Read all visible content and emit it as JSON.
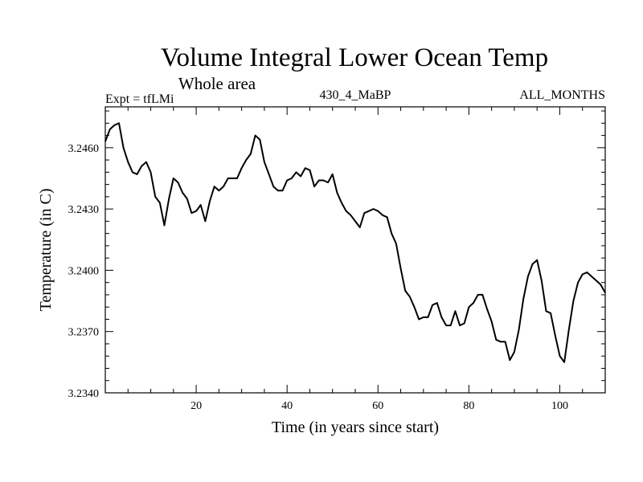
{
  "chart_data": {
    "type": "line",
    "title": "Volume Integral Lower Ocean Temp",
    "subtitle": "Whole area",
    "left_label": "Expt = tfLMi",
    "center_label": "430_4_MaBP",
    "right_label": "ALL_MONTHS",
    "xlabel": "Time (in years since start)",
    "ylabel": "Temperature (in C)",
    "xlim": [
      0,
      110
    ],
    "ylim": [
      3.234,
      3.248
    ],
    "x_ticks": [
      20,
      40,
      60,
      80,
      100
    ],
    "x_tick_labels": [
      "20",
      "40",
      "60",
      "80",
      "100"
    ],
    "y_ticks": [
      3.234,
      3.237,
      3.24,
      3.243,
      3.246
    ],
    "y_tick_labels": [
      "3.2340",
      "3.2370",
      "3.2400",
      "3.2430",
      "3.2460"
    ],
    "series": [
      {
        "name": "tfLMi",
        "x": [
          0,
          1,
          2,
          3,
          4,
          5,
          6,
          7,
          8,
          9,
          10,
          11,
          12,
          13,
          14,
          15,
          16,
          17,
          18,
          19,
          20,
          21,
          22,
          23,
          24,
          25,
          26,
          27,
          28,
          29,
          30,
          31,
          32,
          33,
          34,
          35,
          36,
          37,
          38,
          39,
          40,
          41,
          42,
          43,
          44,
          45,
          46,
          47,
          48,
          49,
          50,
          51,
          52,
          53,
          54,
          55,
          56,
          57,
          58,
          59,
          60,
          61,
          62,
          63,
          64,
          65,
          66,
          67,
          68,
          69,
          70,
          71,
          72,
          73,
          74,
          75,
          76,
          77,
          78,
          79,
          80,
          81,
          82,
          83,
          84,
          85,
          86,
          87,
          88,
          89,
          90,
          91,
          92,
          93,
          94,
          95,
          96,
          97,
          98,
          99,
          100,
          101,
          102,
          103,
          104,
          105,
          106,
          107,
          108,
          109,
          110
        ],
        "values": [
          3.2463,
          3.2469,
          3.2471,
          3.2472,
          3.246,
          3.2453,
          3.2448,
          3.2447,
          3.2451,
          3.2453,
          3.2448,
          3.2436,
          3.2433,
          3.2422,
          3.2435,
          3.2445,
          3.2443,
          3.2438,
          3.2435,
          3.2428,
          3.2429,
          3.2432,
          3.2424,
          3.2434,
          3.2441,
          3.2439,
          3.2441,
          3.2445,
          3.2445,
          3.2445,
          3.245,
          3.2454,
          3.2457,
          3.2466,
          3.2464,
          3.2453,
          3.2447,
          3.2441,
          3.2439,
          3.2439,
          3.2444,
          3.2445,
          3.2448,
          3.2446,
          3.245,
          3.2449,
          3.2441,
          3.2444,
          3.2444,
          3.2443,
          3.2447,
          3.2438,
          3.2433,
          3.2429,
          3.2427,
          3.2424,
          3.2421,
          3.2428,
          3.2429,
          3.243,
          3.2429,
          3.2427,
          3.2426,
          3.2418,
          3.2413,
          3.2401,
          3.239,
          3.2387,
          3.2382,
          3.2376,
          3.2377,
          3.2377,
          3.2383,
          3.2384,
          3.2377,
          3.2373,
          3.2373,
          3.238,
          3.2373,
          3.2374,
          3.2382,
          3.2384,
          3.2388,
          3.2388,
          3.2381,
          3.2375,
          3.2366,
          3.2365,
          3.2365,
          3.2356,
          3.236,
          3.2371,
          3.2386,
          3.2397,
          3.2403,
          3.2405,
          3.2395,
          3.238,
          3.2379,
          3.2368,
          3.2358,
          3.2355,
          3.2371,
          3.2385,
          3.2394,
          3.2398,
          3.2399,
          3.2397,
          3.2395,
          3.2393,
          3.2389
        ]
      }
    ]
  }
}
